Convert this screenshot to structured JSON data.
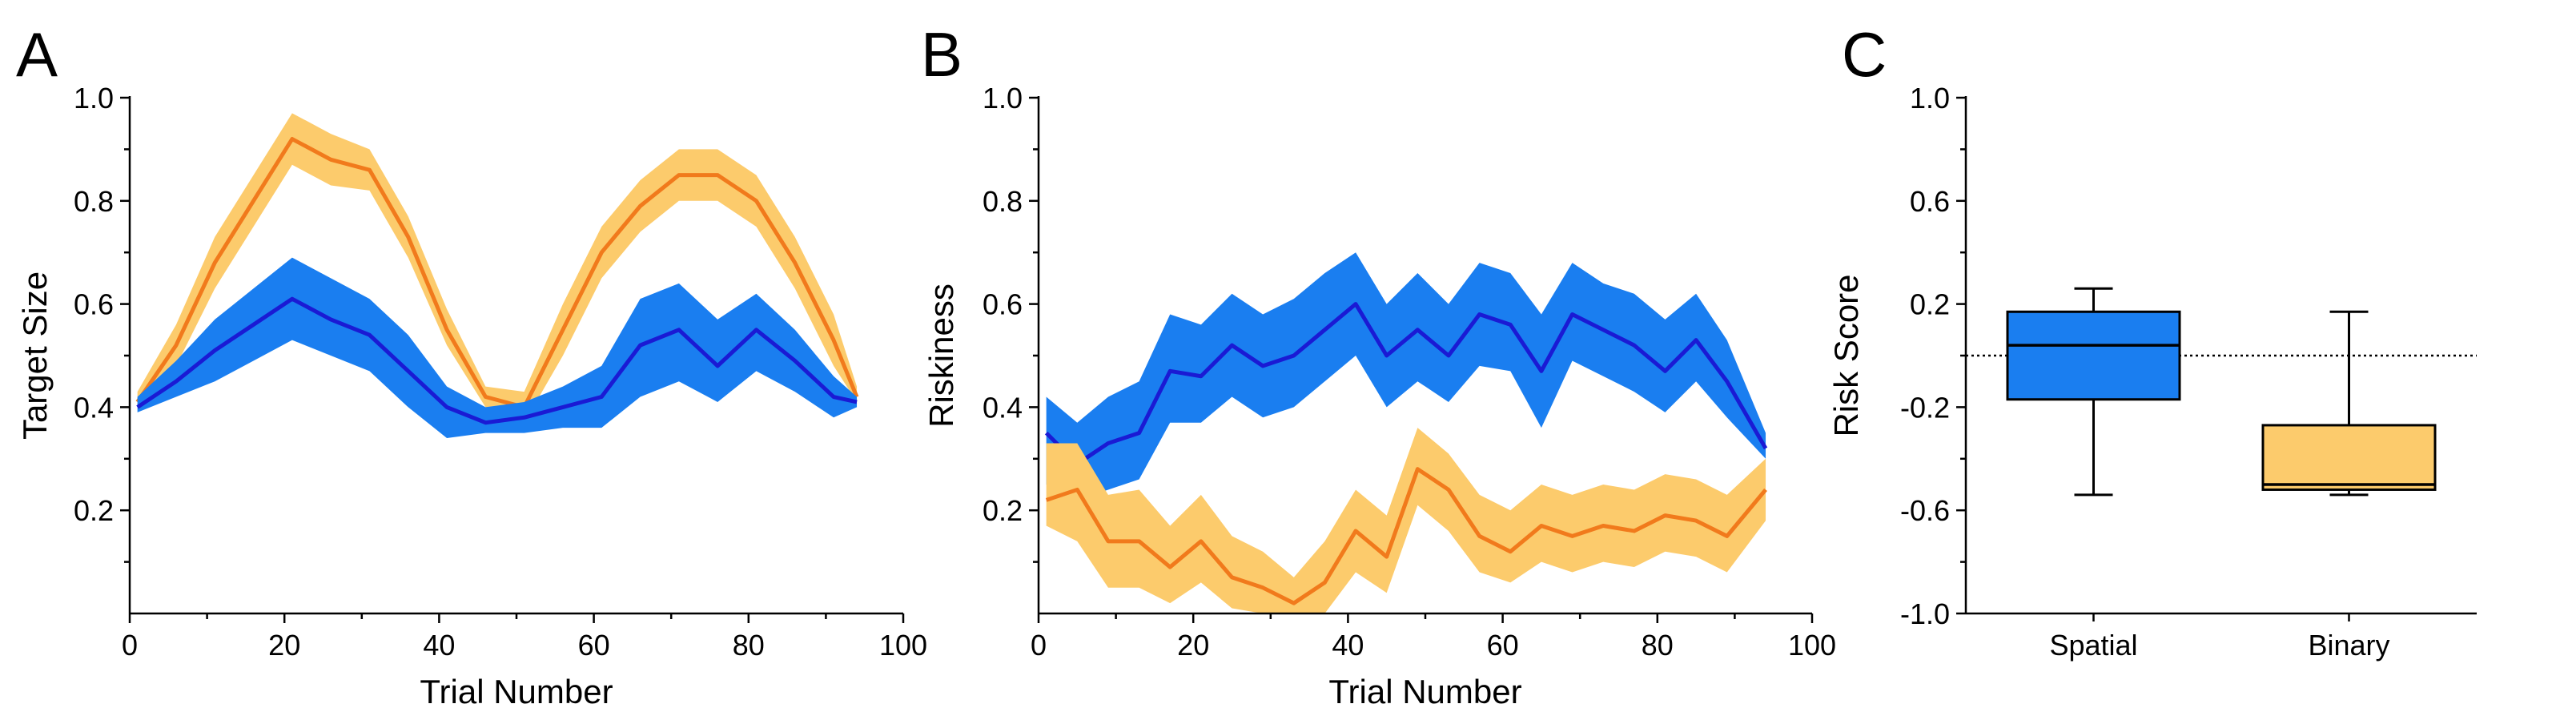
{
  "colors": {
    "blue_band": "#1a7ef0",
    "blue_line": "#1a1ad4",
    "orange_band": "#fccb6c",
    "orange_line": "#f17a1c",
    "box_blue": "#1a7ef0",
    "box_orange": "#fccb6c",
    "axis": "#000000"
  },
  "chart_data": [
    {
      "panel": "A",
      "type": "area",
      "xlabel": "Trial Number",
      "ylabel": "Target Size",
      "xlim": [
        0,
        100
      ],
      "ylim": [
        0,
        1.0
      ],
      "xticks": [
        "0",
        "20",
        "40",
        "60",
        "80",
        "100"
      ],
      "yticks": [
        "0.2",
        "0.4",
        "0.6",
        "0.8",
        "1.0"
      ],
      "grid": false,
      "x": [
        1,
        6,
        11,
        16,
        21,
        26,
        31,
        36,
        41,
        46,
        51,
        56,
        61,
        66,
        71,
        76,
        81,
        86,
        91,
        94
      ],
      "series": [
        {
          "color": "orange",
          "values": [
            0.41,
            0.52,
            0.68,
            0.8,
            0.92,
            0.88,
            0.86,
            0.73,
            0.55,
            0.42,
            0.4,
            0.55,
            0.7,
            0.79,
            0.85,
            0.85,
            0.8,
            0.68,
            0.53,
            0.42
          ],
          "lower": [
            0.4,
            0.48,
            0.63,
            0.75,
            0.87,
            0.83,
            0.82,
            0.69,
            0.52,
            0.4,
            0.37,
            0.5,
            0.65,
            0.74,
            0.8,
            0.8,
            0.75,
            0.63,
            0.48,
            0.41
          ],
          "upper": [
            0.43,
            0.56,
            0.73,
            0.85,
            0.97,
            0.93,
            0.9,
            0.77,
            0.59,
            0.44,
            0.43,
            0.6,
            0.75,
            0.84,
            0.9,
            0.9,
            0.85,
            0.73,
            0.58,
            0.44
          ]
        },
        {
          "color": "blue",
          "values": [
            0.4,
            0.45,
            0.51,
            0.56,
            0.61,
            0.57,
            0.54,
            0.47,
            0.4,
            0.37,
            0.38,
            0.4,
            0.42,
            0.52,
            0.55,
            0.48,
            0.55,
            0.49,
            0.42,
            0.41
          ],
          "lower": [
            0.39,
            0.42,
            0.45,
            0.49,
            0.53,
            0.5,
            0.47,
            0.4,
            0.34,
            0.35,
            0.35,
            0.36,
            0.36,
            0.42,
            0.45,
            0.41,
            0.47,
            0.43,
            0.38,
            0.4
          ],
          "upper": [
            0.42,
            0.49,
            0.57,
            0.63,
            0.69,
            0.65,
            0.61,
            0.54,
            0.44,
            0.4,
            0.41,
            0.44,
            0.48,
            0.61,
            0.64,
            0.57,
            0.62,
            0.55,
            0.46,
            0.42
          ]
        }
      ]
    },
    {
      "panel": "B",
      "type": "area",
      "xlabel": "Trial Number",
      "ylabel": "Riskiness",
      "xlim": [
        0,
        100
      ],
      "ylim": [
        0,
        1.0
      ],
      "xticks": [
        "0",
        "20",
        "40",
        "60",
        "80",
        "100"
      ],
      "yticks": [
        "0.2",
        "0.4",
        "0.6",
        "0.8",
        "1.0"
      ],
      "grid": false,
      "x": [
        1,
        5,
        9,
        13,
        17,
        21,
        25,
        29,
        33,
        37,
        41,
        45,
        49,
        53,
        57,
        61,
        65,
        69,
        73,
        77,
        81,
        85,
        89,
        94
      ],
      "series": [
        {
          "color": "blue",
          "values": [
            0.35,
            0.29,
            0.33,
            0.35,
            0.47,
            0.46,
            0.52,
            0.48,
            0.5,
            0.55,
            0.6,
            0.5,
            0.55,
            0.5,
            0.58,
            0.56,
            0.47,
            0.58,
            0.55,
            0.52,
            0.47,
            0.53,
            0.45,
            0.32
          ],
          "lower": [
            0.25,
            0.22,
            0.24,
            0.26,
            0.37,
            0.37,
            0.42,
            0.38,
            0.4,
            0.45,
            0.5,
            0.4,
            0.45,
            0.41,
            0.48,
            0.47,
            0.36,
            0.49,
            0.46,
            0.43,
            0.39,
            0.45,
            0.38,
            0.3
          ],
          "upper": [
            0.42,
            0.37,
            0.42,
            0.45,
            0.58,
            0.56,
            0.62,
            0.58,
            0.61,
            0.66,
            0.7,
            0.6,
            0.66,
            0.6,
            0.68,
            0.66,
            0.58,
            0.68,
            0.64,
            0.62,
            0.57,
            0.62,
            0.53,
            0.35
          ]
        },
        {
          "color": "orange",
          "values": [
            0.22,
            0.24,
            0.14,
            0.14,
            0.09,
            0.14,
            0.07,
            0.05,
            0.02,
            0.06,
            0.16,
            0.11,
            0.28,
            0.24,
            0.15,
            0.12,
            0.17,
            0.15,
            0.17,
            0.16,
            0.19,
            0.18,
            0.15,
            0.24
          ],
          "lower": [
            0.17,
            0.14,
            0.05,
            0.05,
            0.02,
            0.06,
            0.01,
            0.0,
            0.0,
            0.0,
            0.08,
            0.04,
            0.21,
            0.16,
            0.08,
            0.06,
            0.1,
            0.08,
            0.1,
            0.09,
            0.12,
            0.11,
            0.08,
            0.18
          ],
          "upper": [
            0.33,
            0.33,
            0.23,
            0.24,
            0.17,
            0.23,
            0.15,
            0.12,
            0.07,
            0.14,
            0.24,
            0.19,
            0.36,
            0.31,
            0.23,
            0.2,
            0.25,
            0.23,
            0.25,
            0.24,
            0.27,
            0.26,
            0.23,
            0.3
          ]
        }
      ]
    },
    {
      "panel": "C",
      "type": "box",
      "ylabel": "Risk Score",
      "ylim": [
        -1.0,
        1.0
      ],
      "yticks": [
        "-1.0",
        "-0.6",
        "-0.2",
        "0.2",
        "0.6",
        "1.0"
      ],
      "reference_line_y": 0.0,
      "categories": [
        "Spatial",
        "Binary"
      ],
      "boxes": [
        {
          "category": "Spatial",
          "color": "blue",
          "min": -0.54,
          "q1": -0.17,
          "median": 0.04,
          "q3": 0.17,
          "max": 0.26
        },
        {
          "category": "Binary",
          "color": "orange",
          "min": -0.54,
          "q1": -0.52,
          "median": -0.5,
          "q3": -0.27,
          "max": 0.17
        }
      ]
    }
  ]
}
